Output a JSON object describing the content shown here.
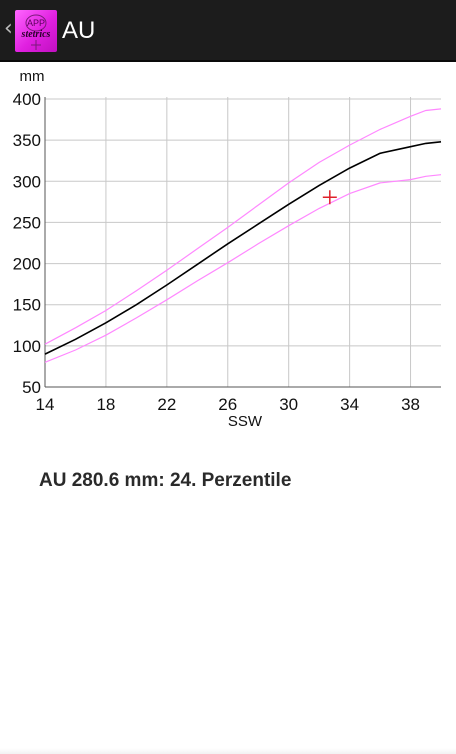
{
  "header": {
    "title": "AU",
    "app_icon_text": [
      "APP",
      "stetrics"
    ]
  },
  "chart_data": {
    "type": "line",
    "xlabel": "SSW",
    "ylabel": "mm",
    "xlim": [
      14,
      40
    ],
    "ylim": [
      50,
      400
    ],
    "xticks": [
      14,
      18,
      22,
      26,
      30,
      34,
      38
    ],
    "yticks": [
      50,
      100,
      150,
      200,
      250,
      300,
      350,
      400
    ],
    "grid": true,
    "series": [
      {
        "color": "#ff88ff",
        "x": [
          14,
          16,
          18,
          20,
          22,
          24,
          26,
          28,
          30,
          32,
          34,
          36,
          38,
          39,
          40
        ],
        "values": [
          102,
          122,
          143,
          167,
          192,
          218,
          244,
          271,
          298,
          323,
          344,
          363,
          379,
          386,
          388
        ]
      },
      {
        "color": "#000000",
        "x": [
          14,
          16,
          18,
          20,
          22,
          24,
          26,
          28,
          30,
          32,
          34,
          36,
          38,
          39,
          40
        ],
        "values": [
          90,
          108,
          128,
          150,
          174,
          199,
          224,
          248,
          272,
          295,
          316,
          334,
          342,
          346,
          348
        ]
      },
      {
        "color": "#ff88ff",
        "x": [
          14,
          16,
          18,
          20,
          22,
          24,
          26,
          28,
          30,
          32,
          34,
          36,
          38,
          39,
          40
        ],
        "values": [
          80,
          95,
          113,
          134,
          156,
          179,
          201,
          224,
          246,
          267,
          285,
          298,
          302,
          306,
          308
        ]
      }
    ],
    "marker": {
      "x": 32.7,
      "y": 280.6,
      "symbol": "+",
      "color": "#e0202a"
    }
  },
  "result": {
    "text": "AU 280.6 mm: 24. Perzentile"
  }
}
